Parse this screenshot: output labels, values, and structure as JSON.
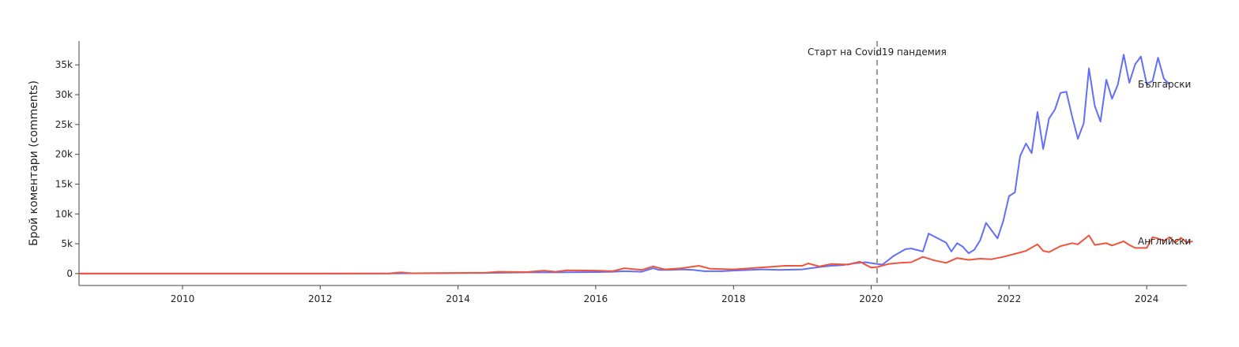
{
  "chart_data": {
    "type": "line",
    "title": "",
    "xlabel": "",
    "ylabel": "Брой коментари (comments)",
    "xlim": [
      "2008-07-01",
      "2024-08-01"
    ],
    "ylim": [
      -2000,
      39000
    ],
    "x_ticks": [
      "2010",
      "2012",
      "2014",
      "2016",
      "2018",
      "2020",
      "2022",
      "2024"
    ],
    "y_ticks": [
      {
        "value": 0,
        "label": "0"
      },
      {
        "value": 5000,
        "label": "5k"
      },
      {
        "value": 10000,
        "label": "10k"
      },
      {
        "value": 15000,
        "label": "15k"
      },
      {
        "value": 20000,
        "label": "20k"
      },
      {
        "value": 25000,
        "label": "25k"
      },
      {
        "value": 30000,
        "label": "30k"
      },
      {
        "value": 35000,
        "label": "35k"
      }
    ],
    "grid": false,
    "annotation": {
      "date": "2020-02-01",
      "text": "Старт на Covid19 пандемия",
      "style": "dashed vertical line"
    },
    "series": [
      {
        "name": "Български",
        "color": "#636efa",
        "points": [
          [
            "2008-07-01",
            0
          ],
          [
            "2010-01-01",
            0
          ],
          [
            "2012-01-01",
            0
          ],
          [
            "2013-01-01",
            30
          ],
          [
            "2014-01-01",
            80
          ],
          [
            "2014-06-01",
            100
          ],
          [
            "2014-09-01",
            150
          ],
          [
            "2015-01-01",
            200
          ],
          [
            "2015-06-01",
            200
          ],
          [
            "2016-01-01",
            250
          ],
          [
            "2016-04-01",
            300
          ],
          [
            "2016-06-01",
            400
          ],
          [
            "2016-09-01",
            300
          ],
          [
            "2016-11-01",
            900
          ],
          [
            "2016-12-01",
            600
          ],
          [
            "2017-02-01",
            600
          ],
          [
            "2017-04-01",
            700
          ],
          [
            "2017-06-01",
            600
          ],
          [
            "2017-08-01",
            400
          ],
          [
            "2017-11-01",
            400
          ],
          [
            "2018-01-01",
            500
          ],
          [
            "2018-06-01",
            700
          ],
          [
            "2018-09-01",
            600
          ],
          [
            "2019-01-01",
            700
          ],
          [
            "2019-04-01",
            1100
          ],
          [
            "2019-06-01",
            1300
          ],
          [
            "2019-08-01",
            1400
          ],
          [
            "2019-10-01",
            1700
          ],
          [
            "2019-12-01",
            1900
          ],
          [
            "2020-02-01",
            1600
          ],
          [
            "2020-03-01",
            1500
          ],
          [
            "2020-05-01",
            3000
          ],
          [
            "2020-07-01",
            4100
          ],
          [
            "2020-08-01",
            4200
          ],
          [
            "2020-10-01",
            3700
          ],
          [
            "2020-11-01",
            6700
          ],
          [
            "2020-12-01",
            6200
          ],
          [
            "2021-02-01",
            5200
          ],
          [
            "2021-03-01",
            3700
          ],
          [
            "2021-04-01",
            5100
          ],
          [
            "2021-05-01",
            4500
          ],
          [
            "2021-06-01",
            3400
          ],
          [
            "2021-07-01",
            4000
          ],
          [
            "2021-08-01",
            5600
          ],
          [
            "2021-09-01",
            8500
          ],
          [
            "2021-11-01",
            5900
          ],
          [
            "2021-12-01",
            8800
          ],
          [
            "2022-01-01",
            13000
          ],
          [
            "2022-02-01",
            13600
          ],
          [
            "2022-03-01",
            19700
          ],
          [
            "2022-04-01",
            21800
          ],
          [
            "2022-05-01",
            20200
          ],
          [
            "2022-06-01",
            27100
          ],
          [
            "2022-07-01",
            20900
          ],
          [
            "2022-08-01",
            26000
          ],
          [
            "2022-09-01",
            27500
          ],
          [
            "2022-10-01",
            30300
          ],
          [
            "2022-11-01",
            30500
          ],
          [
            "2022-12-01",
            26400
          ],
          [
            "2023-01-01",
            22600
          ],
          [
            "2023-02-01",
            25200
          ],
          [
            "2023-03-01",
            34400
          ],
          [
            "2023-04-01",
            28100
          ],
          [
            "2023-05-01",
            25500
          ],
          [
            "2023-06-01",
            32500
          ],
          [
            "2023-07-01",
            29300
          ],
          [
            "2023-08-01",
            31700
          ],
          [
            "2023-09-01",
            36700
          ],
          [
            "2023-10-01",
            32000
          ],
          [
            "2023-11-01",
            35100
          ],
          [
            "2023-12-01",
            36400
          ],
          [
            "2024-01-01",
            31800
          ],
          [
            "2024-02-01",
            32300
          ],
          [
            "2024-03-01",
            36200
          ],
          [
            "2024-04-01",
            32700
          ],
          [
            "2024-05-01",
            31700
          ]
        ]
      },
      {
        "name": "Английски",
        "color": "#ef553b",
        "points": [
          [
            "2008-07-01",
            0
          ],
          [
            "2010-01-01",
            0
          ],
          [
            "2012-01-01",
            0
          ],
          [
            "2013-01-01",
            30
          ],
          [
            "2013-03-01",
            200
          ],
          [
            "2013-05-01",
            50
          ],
          [
            "2014-01-01",
            100
          ],
          [
            "2014-06-01",
            150
          ],
          [
            "2014-08-01",
            300
          ],
          [
            "2015-01-01",
            250
          ],
          [
            "2015-04-01",
            500
          ],
          [
            "2015-06-01",
            300
          ],
          [
            "2015-08-01",
            550
          ],
          [
            "2016-01-01",
            500
          ],
          [
            "2016-04-01",
            400
          ],
          [
            "2016-06-01",
            900
          ],
          [
            "2016-09-01",
            600
          ],
          [
            "2016-11-01",
            1200
          ],
          [
            "2017-01-01",
            700
          ],
          [
            "2017-04-01",
            900
          ],
          [
            "2017-07-01",
            1300
          ],
          [
            "2017-09-01",
            800
          ],
          [
            "2018-01-01",
            700
          ],
          [
            "2018-04-01",
            900
          ],
          [
            "2018-07-01",
            1100
          ],
          [
            "2018-10-01",
            1300
          ],
          [
            "2019-01-01",
            1300
          ],
          [
            "2019-02-01",
            1700
          ],
          [
            "2019-04-01",
            1200
          ],
          [
            "2019-06-01",
            1600
          ],
          [
            "2019-09-01",
            1500
          ],
          [
            "2019-11-01",
            2000
          ],
          [
            "2020-01-01",
            1000
          ],
          [
            "2020-02-01",
            1100
          ],
          [
            "2020-04-01",
            1600
          ],
          [
            "2020-06-01",
            1800
          ],
          [
            "2020-08-01",
            1900
          ],
          [
            "2020-10-01",
            2800
          ],
          [
            "2020-12-01",
            2200
          ],
          [
            "2021-02-01",
            1800
          ],
          [
            "2021-04-01",
            2600
          ],
          [
            "2021-06-01",
            2300
          ],
          [
            "2021-08-01",
            2500
          ],
          [
            "2021-10-01",
            2400
          ],
          [
            "2021-12-01",
            2800
          ],
          [
            "2022-02-01",
            3300
          ],
          [
            "2022-04-01",
            3800
          ],
          [
            "2022-06-01",
            4900
          ],
          [
            "2022-07-01",
            3800
          ],
          [
            "2022-08-01",
            3600
          ],
          [
            "2022-10-01",
            4600
          ],
          [
            "2022-12-01",
            5100
          ],
          [
            "2023-01-01",
            4900
          ],
          [
            "2023-03-01",
            6400
          ],
          [
            "2023-04-01",
            4800
          ],
          [
            "2023-06-01",
            5100
          ],
          [
            "2023-07-01",
            4700
          ],
          [
            "2023-09-01",
            5400
          ],
          [
            "2023-10-01",
            4800
          ],
          [
            "2023-11-01",
            4300
          ],
          [
            "2024-01-01",
            4300
          ],
          [
            "2024-02-01",
            6100
          ],
          [
            "2024-03-01",
            5900
          ],
          [
            "2024-04-01",
            5500
          ],
          [
            "2024-05-01",
            6100
          ],
          [
            "2024-06-01",
            5200
          ],
          [
            "2024-07-01",
            6000
          ],
          [
            "2024-08-01",
            5200
          ],
          [
            "2024-09-01",
            5400
          ]
        ]
      }
    ]
  }
}
